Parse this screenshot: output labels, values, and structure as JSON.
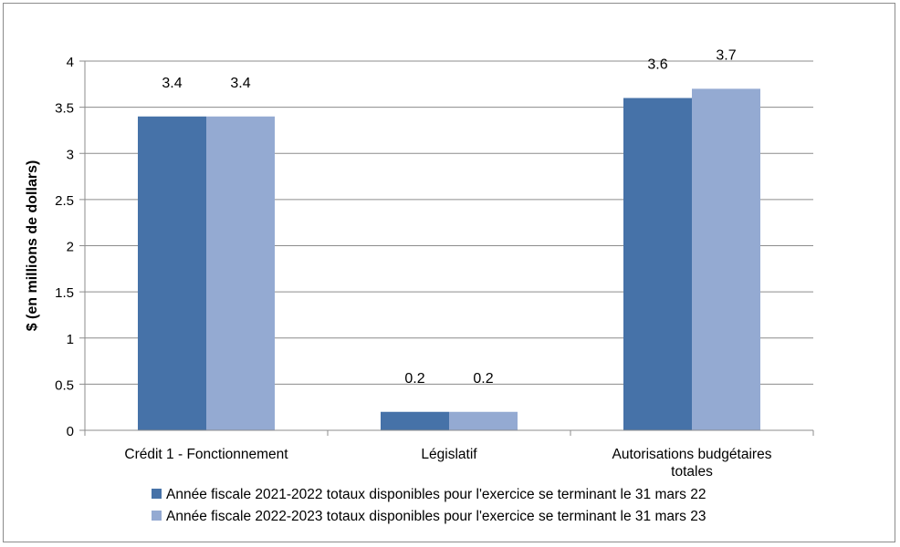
{
  "chart_data": {
    "type": "bar",
    "title": "",
    "xlabel": "",
    "ylabel": "$ (en millions de dollars)",
    "ylim": [
      0,
      4
    ],
    "yticks": [
      0,
      0.5,
      1,
      1.5,
      2,
      2.5,
      3,
      3.5,
      4
    ],
    "ytick_labels": [
      "0",
      "0.5",
      "1",
      "1.5",
      "2",
      "2.5",
      "3",
      "3.5",
      "4"
    ],
    "grid": true,
    "legend_position": "bottom",
    "categories": [
      [
        "Crédit 1 - Fonctionnement"
      ],
      [
        "Législatif"
      ],
      [
        "Autorisations budgétaires",
        "totales"
      ]
    ],
    "series": [
      {
        "name": "Année fiscale 2021-2022 totaux disponibles pour l'exercice se terminant le 31 mars 22",
        "color": "#4672a8",
        "values": [
          3.4,
          0.2,
          3.6
        ],
        "labels": [
          "3.4",
          "0.2",
          "3.6"
        ]
      },
      {
        "name": "Année fiscale 2022-2023 totaux disponibles pour l'exercice se terminant le 31 mars 23",
        "color": "#94aad2",
        "values": [
          3.4,
          0.2,
          3.7
        ],
        "labels": [
          "3.4",
          "0.2",
          "3.7"
        ]
      }
    ]
  }
}
